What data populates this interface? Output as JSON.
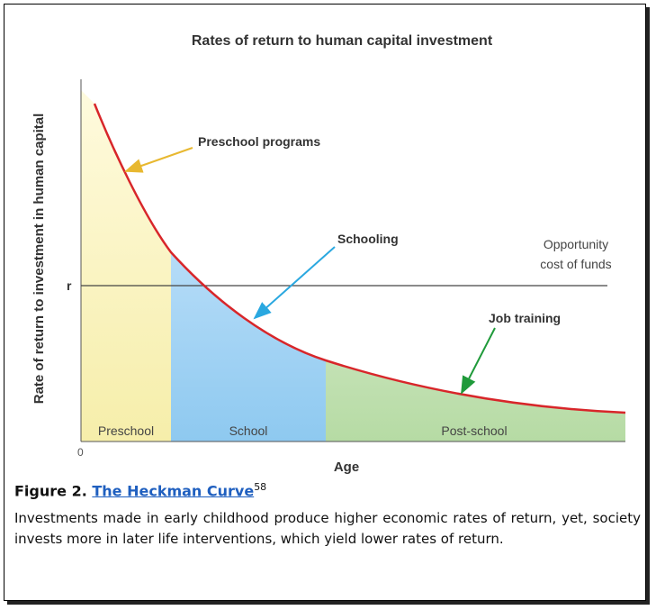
{
  "figure": {
    "title": "Rates of return to human capital investment",
    "y_axis_label": "Rate of return to investment in human capital",
    "x_axis_label": "Age",
    "origin_label": "0",
    "r_label": "r",
    "annotations": {
      "preschool_programs": "Preschool programs",
      "schooling": "Schooling",
      "job_training": "Job training",
      "opportunity_cost": [
        "Opportunity",
        "cost of funds"
      ]
    },
    "regions": [
      "Preschool",
      "School",
      "Post-school"
    ]
  },
  "caption": {
    "label": "Figure 2.",
    "link": "The Heckman Curve",
    "superscript": "58",
    "text": "Investments made in early childhood produce higher economic rates of return, yet, society invests more in later life interventions, which yield lower rates of return."
  }
}
